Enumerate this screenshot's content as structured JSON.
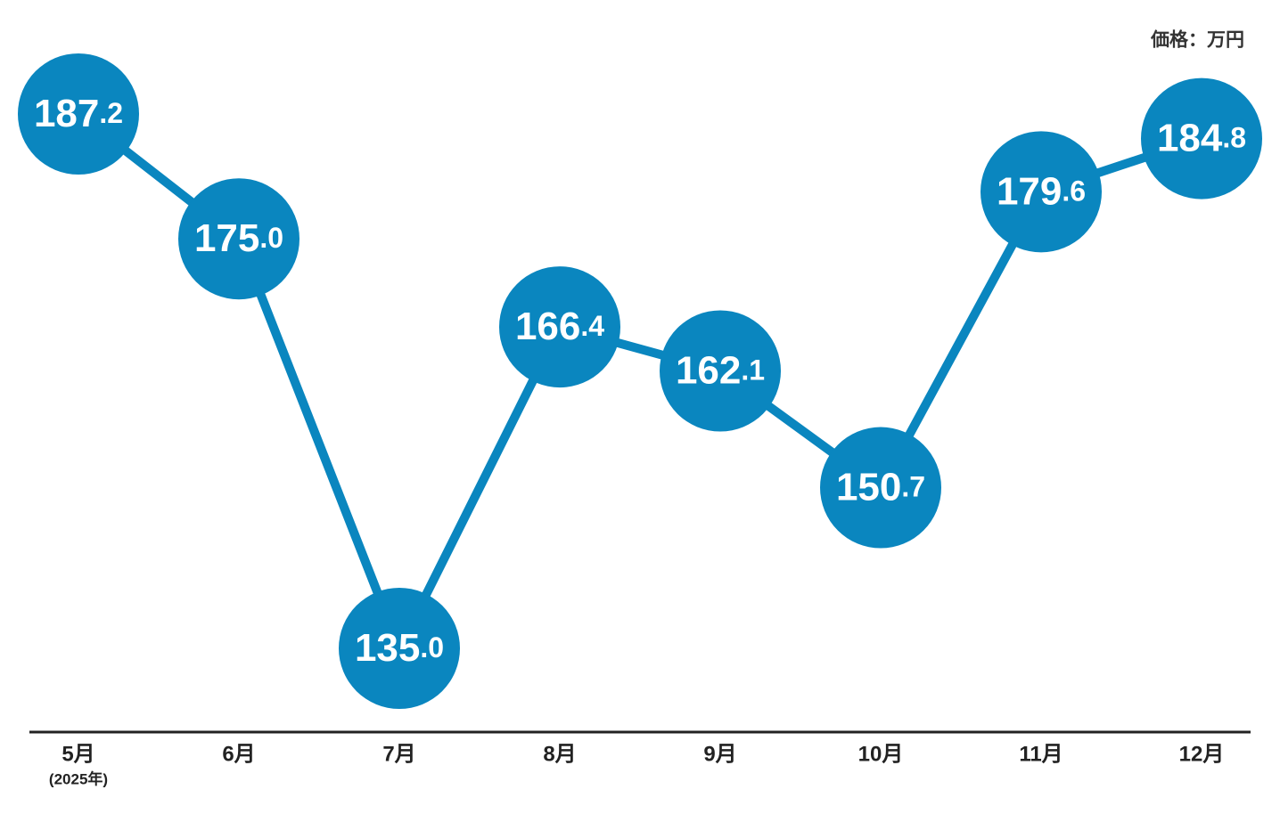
{
  "chart_data": {
    "type": "line",
    "unit_label": "価格：万円",
    "categories": [
      "5月",
      "6月",
      "7月",
      "8月",
      "9月",
      "10月",
      "11月",
      "12月"
    ],
    "category_note": "(2025年)",
    "values": [
      187.2,
      175.0,
      135.0,
      166.4,
      162.1,
      150.7,
      179.6,
      184.8
    ],
    "value_labels": [
      "187.2",
      "175.0",
      "135.0",
      "166.4",
      "162.1",
      "150.7",
      "179.6",
      "184.8"
    ],
    "color": "#0a86bf"
  }
}
